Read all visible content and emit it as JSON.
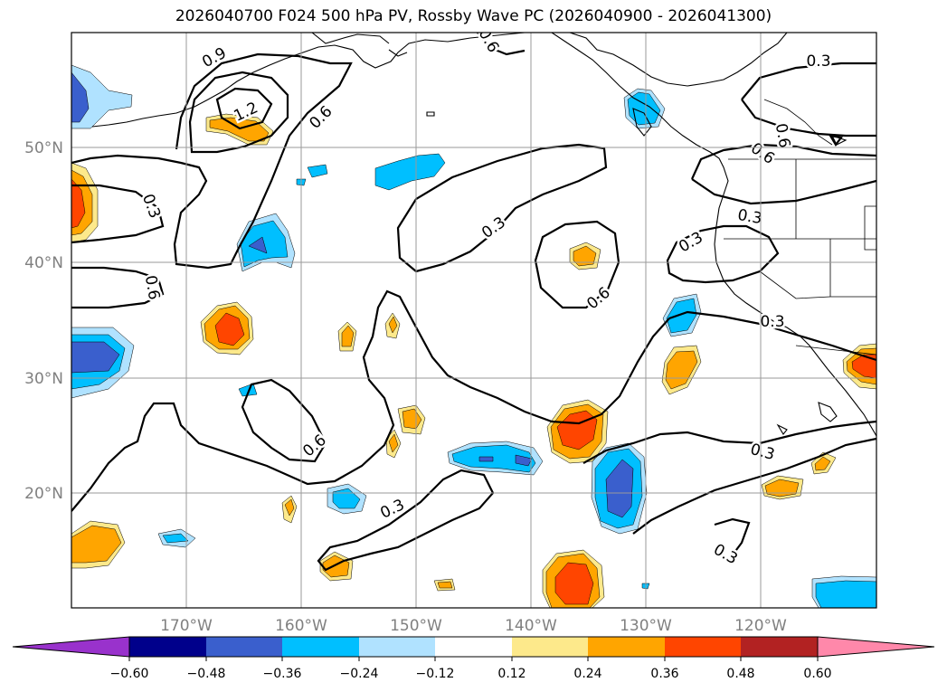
{
  "title": "2026040700 F024 500 hPa PV, Rossby Wave PC (2026040900 - 2026041300)",
  "lat_labels": [
    "50°N",
    "40°N",
    "30°N",
    "20°N"
  ],
  "lon_labels": [
    "170°W",
    "160°W",
    "150°W",
    "140°W",
    "130°W",
    "120°W"
  ],
  "contour_labels": [
    "0.9",
    "1.2",
    "0.6",
    "0.3",
    "0.3",
    "0.6",
    "0.3",
    "0.6",
    "0.6",
    "0.3",
    "0.6",
    "0.6",
    "0.3",
    "0.3",
    "0.3",
    "0.3",
    "0.3",
    "0.6"
  ],
  "colorbar": {
    "ticks": [
      "−0.60",
      "−0.48",
      "−0.36",
      "−0.24",
      "−0.12",
      "0.12",
      "0.24",
      "0.36",
      "0.48",
      "0.60"
    ],
    "colors": [
      "#9932cc",
      "#00008b",
      "#3a5fcd",
      "#00bfff",
      "#b0e2ff",
      "#ffffff",
      "#fde98b",
      "#ffa500",
      "#ff4500",
      "#b22222",
      "#ff88aa"
    ]
  },
  "shade_colors": {
    "neg1": "#b0e2ff",
    "neg2": "#00bfff",
    "neg3": "#3a5fcd",
    "pos1": "#fde98b",
    "pos2": "#ffa500",
    "pos3": "#ff4500"
  }
}
